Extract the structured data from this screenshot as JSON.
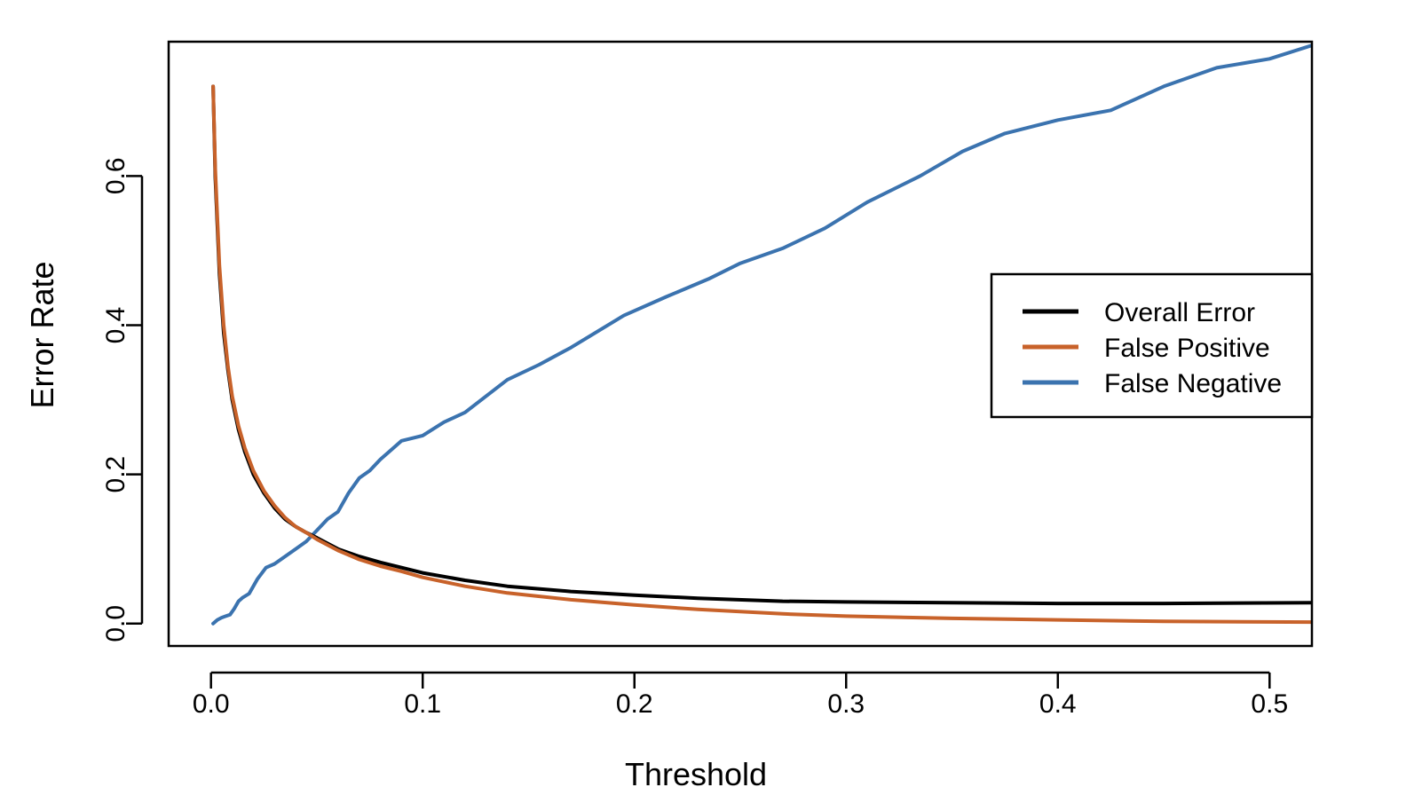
{
  "chart_data": {
    "type": "line",
    "title": "",
    "xlabel": "Threshold",
    "ylabel": "Error Rate",
    "xlim": [
      -0.02,
      0.52
    ],
    "ylim": [
      -0.03,
      0.78
    ],
    "x_ticks": [
      0.0,
      0.1,
      0.2,
      0.3,
      0.4,
      0.5
    ],
    "x_tick_labels": [
      "0.0",
      "0.1",
      "0.2",
      "0.3",
      "0.4",
      "0.5"
    ],
    "y_ticks": [
      0.0,
      0.2,
      0.4,
      0.6
    ],
    "y_tick_labels": [
      "0.0",
      "0.2",
      "0.4",
      "0.6"
    ],
    "grid": false,
    "legend_position": "right",
    "series": [
      {
        "name": "Overall Error",
        "color": "#000000",
        "x": [
          0.001,
          0.002,
          0.004,
          0.006,
          0.008,
          0.01,
          0.013,
          0.016,
          0.02,
          0.025,
          0.03,
          0.035,
          0.04,
          0.045,
          0.05,
          0.06,
          0.07,
          0.08,
          0.09,
          0.1,
          0.12,
          0.14,
          0.17,
          0.2,
          0.23,
          0.27,
          0.3,
          0.35,
          0.4,
          0.45,
          0.52
        ],
        "y": [
          0.72,
          0.6,
          0.47,
          0.39,
          0.34,
          0.3,
          0.26,
          0.23,
          0.2,
          0.175,
          0.155,
          0.14,
          0.13,
          0.122,
          0.115,
          0.1,
          0.09,
          0.082,
          0.075,
          0.068,
          0.058,
          0.05,
          0.043,
          0.038,
          0.034,
          0.03,
          0.029,
          0.028,
          0.027,
          0.027,
          0.028
        ]
      },
      {
        "name": "False Positive",
        "color": "#C8622A",
        "x": [
          0.001,
          0.002,
          0.004,
          0.006,
          0.008,
          0.01,
          0.013,
          0.016,
          0.02,
          0.025,
          0.03,
          0.035,
          0.04,
          0.045,
          0.05,
          0.06,
          0.07,
          0.08,
          0.09,
          0.1,
          0.12,
          0.14,
          0.17,
          0.2,
          0.23,
          0.27,
          0.3,
          0.35,
          0.4,
          0.45,
          0.52
        ],
        "y": [
          0.72,
          0.61,
          0.48,
          0.4,
          0.345,
          0.305,
          0.265,
          0.235,
          0.205,
          0.178,
          0.158,
          0.142,
          0.13,
          0.122,
          0.113,
          0.098,
          0.086,
          0.077,
          0.07,
          0.062,
          0.05,
          0.041,
          0.032,
          0.025,
          0.019,
          0.013,
          0.01,
          0.007,
          0.005,
          0.003,
          0.002
        ]
      },
      {
        "name": "False Negative",
        "color": "#3B73AF",
        "x": [
          0.001,
          0.003,
          0.005,
          0.007,
          0.009,
          0.011,
          0.013,
          0.015,
          0.018,
          0.022,
          0.026,
          0.03,
          0.035,
          0.04,
          0.045,
          0.05,
          0.055,
          0.06,
          0.065,
          0.07,
          0.075,
          0.08,
          0.09,
          0.1,
          0.11,
          0.12,
          0.14,
          0.155,
          0.17,
          0.195,
          0.215,
          0.235,
          0.25,
          0.27,
          0.29,
          0.31,
          0.335,
          0.355,
          0.375,
          0.4,
          0.425,
          0.45,
          0.475,
          0.5,
          0.52
        ],
        "y": [
          0.0,
          0.005,
          0.008,
          0.01,
          0.012,
          0.02,
          0.03,
          0.035,
          0.04,
          0.06,
          0.075,
          0.08,
          0.09,
          0.1,
          0.11,
          0.125,
          0.14,
          0.15,
          0.175,
          0.195,
          0.205,
          0.22,
          0.245,
          0.252,
          0.27,
          0.283,
          0.327,
          0.347,
          0.37,
          0.413,
          0.438,
          0.462,
          0.483,
          0.503,
          0.53,
          0.565,
          0.6,
          0.633,
          0.657,
          0.675,
          0.688,
          0.72,
          0.745,
          0.757,
          0.775
        ]
      }
    ]
  }
}
